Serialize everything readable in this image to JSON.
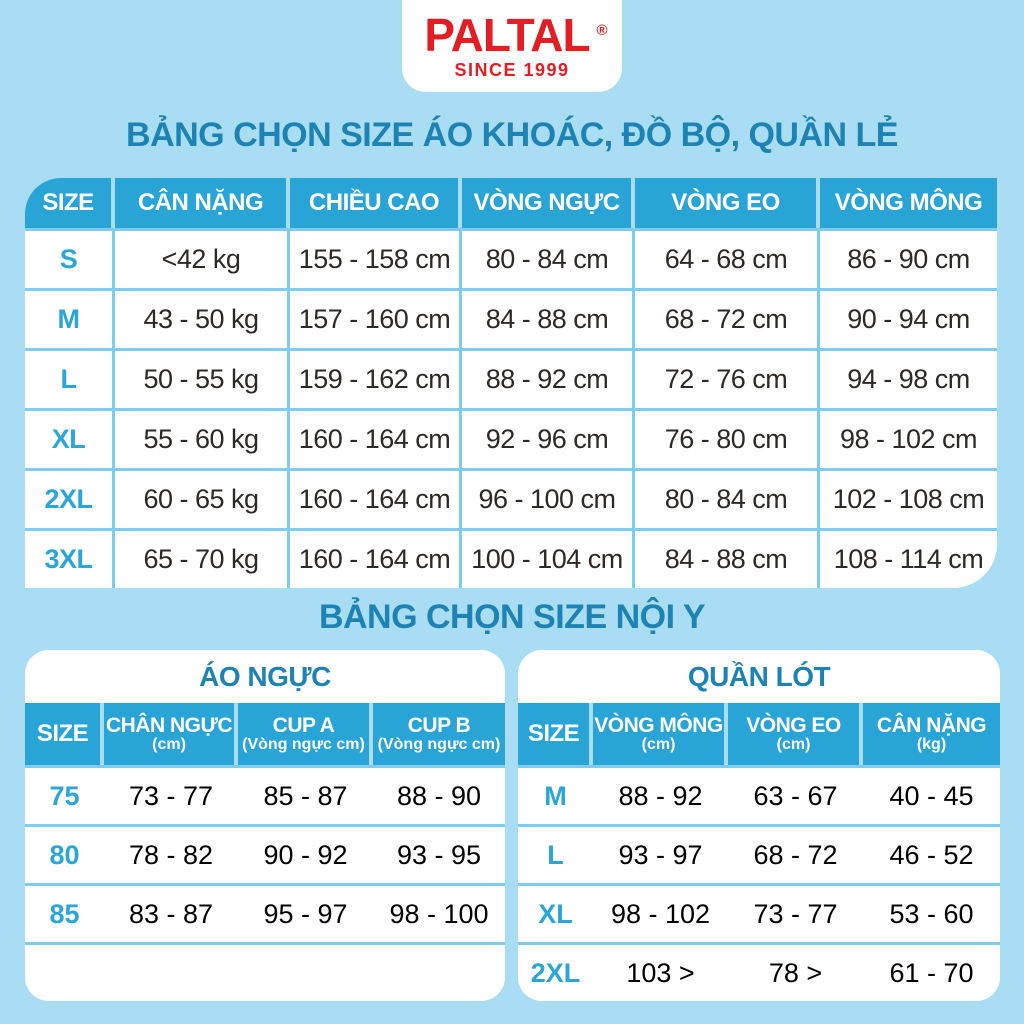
{
  "colors": {
    "bg": "#a9ddf3",
    "header-blue": "#29a4d7",
    "accent-blue": "#2aa6d9",
    "title-blue": "#1d83b5",
    "sep": "#7fcdee",
    "red": "#e31d23",
    "text": "#2d2926"
  },
  "logo": {
    "brand": "PALTAL",
    "registered": "®",
    "tagline": "SINCE 1999"
  },
  "section1": {
    "title": "BẢNG CHỌN SIZE ÁO KHOÁC, ĐỒ BỘ, QUẦN LẺ",
    "table": {
      "headers": [
        "SIZE",
        "CÂN NẶNG",
        "CHIỀU CAO",
        "VÒNG NGỰC",
        "VÒNG EO",
        "VÒNG MÔNG"
      ],
      "rows": [
        {
          "size": "S",
          "values": [
            "<42 kg",
            "155 - 158 cm",
            "80 - 84 cm",
            "64 - 68 cm",
            "86 - 90 cm"
          ]
        },
        {
          "size": "M",
          "values": [
            "43 - 50 kg",
            "157 - 160 cm",
            "84 - 88 cm",
            "68 - 72 cm",
            "90 - 94 cm"
          ]
        },
        {
          "size": "L",
          "values": [
            "50 - 55 kg",
            "159 - 162 cm",
            "88 - 92 cm",
            "72 - 76 cm",
            "94 - 98 cm"
          ]
        },
        {
          "size": "XL",
          "values": [
            "55 - 60 kg",
            "160 - 164 cm",
            "92 - 96 cm",
            "76 - 80 cm",
            "98 - 102 cm"
          ]
        },
        {
          "size": "2XL",
          "values": [
            "60 - 65 kg",
            "160 - 164 cm",
            "96 - 100 cm",
            "80 - 84 cm",
            "102 - 108 cm"
          ]
        },
        {
          "size": "3XL",
          "values": [
            "65 - 70 kg",
            "160 - 164 cm",
            "100 - 104 cm",
            "84 - 88 cm",
            "108 - 114 cm"
          ]
        }
      ]
    }
  },
  "section2": {
    "title": "BẢNG CHỌN SIZE NỘI Y",
    "bra": {
      "title": "ÁO NGỰC",
      "headers": [
        {
          "main": "SIZE",
          "sub": ""
        },
        {
          "main": "CHÂN NGỰC",
          "sub": "(cm)"
        },
        {
          "main": "CUP A",
          "sub": "(Vòng ngực cm)"
        },
        {
          "main": "CUP B",
          "sub": "(Vòng ngực cm)"
        }
      ],
      "rows": [
        {
          "size": "75",
          "values": [
            "73 - 77",
            "85 - 87",
            "88 - 90"
          ]
        },
        {
          "size": "80",
          "values": [
            "78 - 82",
            "90 - 92",
            "93 - 95"
          ]
        },
        {
          "size": "85",
          "values": [
            "83 - 87",
            "95 - 97",
            "98 - 100"
          ]
        },
        {
          "size": "",
          "values": [
            "",
            "",
            ""
          ]
        }
      ]
    },
    "panty": {
      "title": "QUẦN LÓT",
      "headers": [
        {
          "main": "SIZE",
          "sub": ""
        },
        {
          "main": "VÒNG MÔNG",
          "sub": "(cm)"
        },
        {
          "main": "VÒNG EO",
          "sub": "(cm)"
        },
        {
          "main": "CÂN NẶNG",
          "sub": "(kg)"
        }
      ],
      "rows": [
        {
          "size": "M",
          "values": [
            "88 - 92",
            "63 - 67",
            "40 - 45"
          ]
        },
        {
          "size": "L",
          "values": [
            "93 - 97",
            "68 - 72",
            "46 - 52"
          ]
        },
        {
          "size": "XL",
          "values": [
            "98 - 102",
            "73 - 77",
            "53 - 60"
          ]
        },
        {
          "size": "2XL",
          "values": [
            "103 >",
            "78 >",
            "61 - 70"
          ]
        }
      ]
    }
  }
}
